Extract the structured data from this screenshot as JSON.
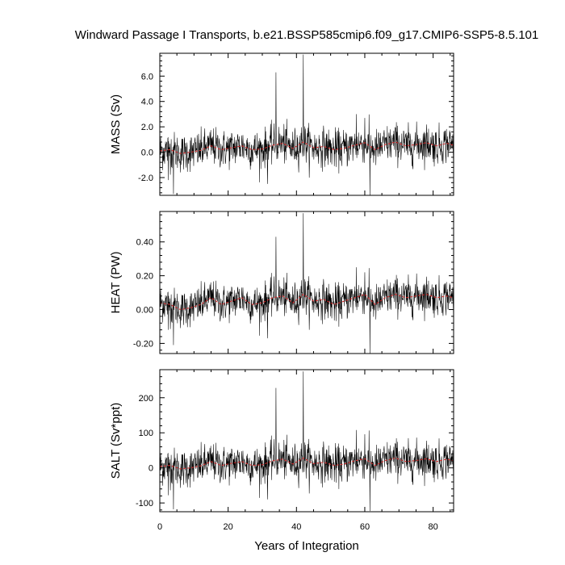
{
  "title": "Windward Passage I Transports, b.e21.BSSP585cmip6.f09_g17.CMIP6-SSP5-8.5.101",
  "chart_data": {
    "type": "line",
    "title": "Windward Passage I Transports, b.e21.BSSP585cmip6.f09_g17.CMIP6-SSP5-8.5.101",
    "xlabel": "Years of Integration",
    "xlim": [
      0,
      86
    ],
    "x_ticks": [
      0,
      20,
      40,
      60,
      80
    ],
    "x_tick_labels": [
      "0",
      "20",
      "40",
      "60",
      "80"
    ],
    "grid": false,
    "legend": "none",
    "colors": {
      "monthly": "#000000",
      "smoothed": "#d62728"
    },
    "panels": [
      {
        "name": "mass",
        "ylabel": "MASS (Sv)",
        "ylim": [
          -3.4,
          7.8
        ],
        "y_ticks": [
          -2,
          0,
          2,
          4,
          6
        ],
        "y_tick_labels": [
          "-2.0",
          "0.0",
          "2.0",
          "4.0",
          "6.0"
        ],
        "smooth_x": [
          0,
          3,
          6,
          9,
          12,
          15,
          18,
          21,
          24,
          27,
          30,
          33,
          36,
          39,
          42,
          45,
          48,
          51,
          54,
          57,
          60,
          63,
          66,
          69,
          72,
          75,
          78,
          81,
          84,
          86
        ],
        "smooth_y": [
          0.1,
          0.2,
          -0.1,
          0.0,
          0.15,
          0.5,
          0.2,
          0.35,
          0.5,
          0.2,
          0.25,
          0.55,
          0.7,
          0.3,
          0.8,
          0.35,
          0.45,
          0.2,
          0.3,
          0.55,
          0.75,
          0.2,
          0.6,
          0.8,
          0.5,
          0.6,
          0.75,
          0.5,
          0.7,
          0.55
        ],
        "spikes": [
          {
            "x": 34.0,
            "y": 6.3
          },
          {
            "x": 42.0,
            "y": 7.7
          },
          {
            "x": 4.0,
            "y": -3.3
          },
          {
            "x": 61.5,
            "y": -3.4
          },
          {
            "x": 57.5,
            "y": 3.0
          },
          {
            "x": 60.0,
            "y": 2.7
          },
          {
            "x": 2.5,
            "y": -2.2
          },
          {
            "x": 86.0,
            "y": -2.1
          },
          {
            "x": 31.5,
            "y": -2.5
          }
        ],
        "noise_sd": 0.75
      },
      {
        "name": "heat",
        "ylabel": "HEAT (PW)",
        "ylim": [
          -0.26,
          0.58
        ],
        "y_ticks": [
          -0.2,
          0.0,
          0.2,
          0.4
        ],
        "y_tick_labels": [
          "-0.20",
          "0.00",
          "0.20",
          "0.40"
        ],
        "smooth_x": [
          0,
          3,
          6,
          9,
          12,
          15,
          18,
          21,
          24,
          27,
          30,
          33,
          36,
          39,
          42,
          45,
          48,
          51,
          54,
          57,
          60,
          63,
          66,
          69,
          72,
          75,
          78,
          81,
          84,
          86
        ],
        "smooth_y": [
          0.04,
          0.03,
          0.0,
          0.01,
          0.03,
          0.07,
          0.03,
          0.05,
          0.07,
          0.03,
          0.04,
          0.07,
          0.08,
          0.04,
          0.09,
          0.05,
          0.06,
          0.03,
          0.05,
          0.07,
          0.09,
          0.03,
          0.07,
          0.09,
          0.07,
          0.08,
          0.09,
          0.07,
          0.08,
          0.07
        ],
        "spikes": [
          {
            "x": 34.0,
            "y": 0.43
          },
          {
            "x": 42.0,
            "y": 0.57
          },
          {
            "x": 4.0,
            "y": -0.21
          },
          {
            "x": 61.5,
            "y": -0.26
          },
          {
            "x": 57.5,
            "y": 0.25
          },
          {
            "x": 60.0,
            "y": 0.22
          },
          {
            "x": 2.5,
            "y": -0.12
          },
          {
            "x": 86.0,
            "y": -0.13
          },
          {
            "x": 31.5,
            "y": -0.17
          }
        ],
        "noise_sd": 0.055
      },
      {
        "name": "salt",
        "ylabel": "SALT (Sv*ppt)",
        "ylim": [
          -125,
          280
        ],
        "y_ticks": [
          -100,
          0,
          100,
          200
        ],
        "y_tick_labels": [
          "-100",
          "0",
          "100",
          "200"
        ],
        "smooth_x": [
          0,
          3,
          6,
          9,
          12,
          15,
          18,
          21,
          24,
          27,
          30,
          33,
          36,
          39,
          42,
          45,
          48,
          51,
          54,
          57,
          60,
          63,
          66,
          69,
          72,
          75,
          78,
          81,
          84,
          86
        ],
        "smooth_y": [
          4,
          7,
          -3,
          0,
          6,
          18,
          7,
          13,
          18,
          7,
          9,
          20,
          25,
          11,
          28,
          12,
          16,
          7,
          11,
          20,
          26,
          7,
          21,
          28,
          18,
          21,
          26,
          18,
          25,
          20
        ],
        "spikes": [
          {
            "x": 34.0,
            "y": 228
          },
          {
            "x": 42.0,
            "y": 275
          },
          {
            "x": 4.0,
            "y": -118
          },
          {
            "x": 61.5,
            "y": -123
          },
          {
            "x": 57.5,
            "y": 108
          },
          {
            "x": 60.0,
            "y": 96
          },
          {
            "x": 2.5,
            "y": -78
          },
          {
            "x": 86.0,
            "y": -75
          },
          {
            "x": 31.5,
            "y": -90
          }
        ],
        "noise_sd": 27
      }
    ]
  }
}
